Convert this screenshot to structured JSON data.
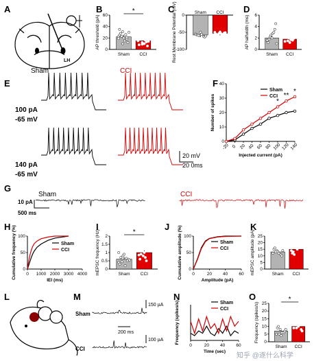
{
  "panels": {
    "A": "A",
    "B": "B",
    "C": "C",
    "D": "D",
    "E": "E",
    "F": "F",
    "G": "G",
    "H": "H",
    "I": "I",
    "J": "J",
    "K": "K",
    "L": "L",
    "M": "M",
    "N": "N",
    "O": "O"
  },
  "colors": {
    "sham": "#000000",
    "cci": "#d40000",
    "sham_bar": "#b3b3b3",
    "cci_bar": "#e00000"
  },
  "brain": {
    "lh_label": "LH"
  },
  "traces_E": {
    "sham_title": "Sham",
    "cci_title": "CCI",
    "row1_current": "100 pA",
    "row1_vm": "-65 mV",
    "row2_current": "140 pA",
    "row2_vm": "-65 mV",
    "scale_v": "20 mV",
    "scale_t": "20 0ms"
  },
  "traces_G": {
    "sham_title": "Sham",
    "cci_title": "CCI",
    "scale_i": "10 pA",
    "scale_t": "500 ms"
  },
  "traces_M": {
    "sham_label": "Sham",
    "cci_label": "CCI",
    "scale_1": "150 µA",
    "scale_2": "100 µA",
    "scale_t": "200 ms"
  },
  "watermark": "知乎 @逐什么科学",
  "chart_data": [
    {
      "panel": "B",
      "type": "bar",
      "categories": [
        "Sham",
        "CCI"
      ],
      "values": [
        22,
        15
      ],
      "ylabel": "AP threshold (pA)",
      "ylim": [
        0,
        60
      ],
      "yticks": [
        0,
        20,
        40,
        60
      ],
      "significance": "*",
      "points": [
        [
          22,
          31,
          18,
          25,
          20,
          12,
          28,
          15,
          30,
          23,
          26,
          19,
          10,
          21,
          35
        ],
        [
          15,
          12,
          24,
          8,
          18,
          6,
          30,
          10,
          14,
          20,
          16,
          22,
          9,
          13,
          27
        ]
      ]
    },
    {
      "panel": "C",
      "type": "bar",
      "categories": [
        "Sham",
        "CCI"
      ],
      "values": [
        -58,
        -53
      ],
      "ylabel": "Rest Membrane Potential (mV)",
      "ylim": [
        -100,
        0
      ],
      "yticks": [
        0,
        -50,
        -100
      ],
      "points": [
        [
          -55,
          -60,
          -62,
          -57,
          -50,
          -64,
          -58,
          -56,
          -61,
          -59
        ],
        [
          -50,
          -53,
          -56,
          -55,
          -49,
          -52,
          -58,
          -54,
          -51,
          -57
        ]
      ]
    },
    {
      "panel": "D",
      "type": "bar",
      "categories": [
        "Sham",
        "CCI"
      ],
      "values": [
        2.0,
        1.8
      ],
      "ylabel": "AP halfwidth (ms)",
      "ylim": [
        0,
        6
      ],
      "yticks": [
        0,
        2,
        4,
        6
      ],
      "points": [
        [
          1.5,
          2.5,
          3.5,
          1.2,
          2.0,
          4.5,
          1.8,
          2.8,
          1.0,
          2.2,
          3.0,
          1.6
        ],
        [
          1.4,
          2.0,
          1.6,
          2.4,
          1.2,
          1.9,
          2.6,
          1.7,
          2.2,
          1.5,
          1.8,
          3.0
        ]
      ]
    },
    {
      "panel": "F",
      "type": "line",
      "x": [
        -20,
        0,
        20,
        40,
        60,
        80,
        100,
        120,
        140
      ],
      "series": [
        {
          "name": "Sham",
          "values": [
            0,
            1,
            5,
            9,
            12,
            16,
            18,
            20,
            21
          ]
        },
        {
          "name": "CCI",
          "values": [
            0,
            2,
            8,
            12,
            16,
            20,
            24,
            28,
            31
          ]
        }
      ],
      "xlabel": "Injected current (pA)",
      "ylabel": "Number of spikes",
      "xlim": [
        -20,
        140
      ],
      "ylim": [
        0,
        40
      ],
      "xticks": [
        -20,
        0,
        20,
        40,
        60,
        80,
        100,
        120,
        140
      ],
      "yticks": [
        0,
        10,
        20,
        30,
        40
      ],
      "significance": [
        "*",
        "**",
        "*"
      ]
    },
    {
      "panel": "H",
      "type": "line",
      "x": [
        0,
        100,
        200,
        300,
        400,
        500,
        700,
        1000,
        1500,
        2000,
        3000
      ],
      "series": [
        {
          "name": "Sham",
          "values": [
            0,
            12,
            25,
            37,
            47,
            55,
            66,
            76,
            87,
            94,
            100
          ]
        },
        {
          "name": "CCI",
          "values": [
            0,
            25,
            45,
            60,
            70,
            77,
            85,
            92,
            97,
            100,
            100
          ]
        }
      ],
      "xlabel": "IEI (ms)",
      "ylabel": "Cumulative frequency (%)",
      "xlim": [
        0,
        4000
      ],
      "ylim": [
        0,
        100
      ],
      "xticks": [
        0,
        1000,
        2000,
        3000,
        4000
      ],
      "yticks": [
        0,
        50,
        100
      ]
    },
    {
      "panel": "I",
      "type": "bar",
      "categories": [
        "Sham",
        "CCI"
      ],
      "values": [
        0.6,
        1.0
      ],
      "ylabel": "mEPSC frequency (Hz)",
      "ylim": [
        0,
        2.0
      ],
      "yticks": [
        0,
        0.5,
        1.0,
        1.5,
        2.0
      ],
      "significance": "*",
      "points": [
        [
          0.4,
          0.8,
          0.5,
          0.3,
          0.9,
          0.6,
          0.7,
          0.2,
          0.55,
          0.45,
          0.65,
          1.0
        ],
        [
          1.2,
          0.8,
          1.5,
          0.6,
          1.0,
          1.3,
          0.9,
          0.7,
          1.6,
          1.1,
          0.5,
          0.85
        ]
      ]
    },
    {
      "panel": "J",
      "type": "line",
      "x": [
        0,
        5,
        10,
        15,
        20,
        30,
        40,
        60
      ],
      "series": [
        {
          "name": "Sham",
          "values": [
            0,
            30,
            65,
            85,
            93,
            98,
            100,
            100
          ]
        },
        {
          "name": "CCI",
          "values": [
            0,
            28,
            62,
            83,
            92,
            97,
            99,
            100
          ]
        }
      ],
      "xlabel": "Amplitude (pA)",
      "ylabel": "Cumulative amplitude (%)",
      "xlim": [
        0,
        60
      ],
      "ylim": [
        0,
        100
      ],
      "xticks": [
        0,
        20,
        40,
        60
      ],
      "yticks": [
        0,
        50,
        100
      ]
    },
    {
      "panel": "K",
      "type": "bar",
      "categories": [
        "Sham",
        "CCI"
      ],
      "values": [
        13,
        15
      ],
      "ylabel": "mEPSC amplitude (pA)",
      "ylim": [
        0,
        25
      ],
      "yticks": [
        0,
        5,
        10,
        15,
        20,
        25
      ],
      "points": [
        [
          12,
          14,
          11,
          15,
          13,
          10,
          16,
          12,
          14,
          13
        ],
        [
          14,
          20,
          18,
          12,
          16,
          22,
          13,
          15,
          17,
          11
        ]
      ]
    },
    {
      "panel": "N",
      "type": "line",
      "x": [
        0,
        5,
        10,
        15,
        20,
        25,
        30,
        35,
        40,
        45,
        50,
        55,
        60
      ],
      "series": [
        {
          "name": "Sham",
          "values": [
            3,
            2,
            4,
            3,
            6,
            3,
            2,
            5,
            3,
            6,
            2,
            4,
            3
          ]
        },
        {
          "name": "CCI",
          "values": [
            8,
            3,
            9,
            4,
            10,
            5,
            7,
            3,
            9,
            4,
            10,
            6,
            8
          ]
        }
      ],
      "xlabel": "Time (sec)",
      "ylabel": "Frequency (spikes/s)",
      "xlim": [
        0,
        60
      ],
      "ylim": [
        0,
        15
      ],
      "xticks": [
        0,
        20,
        40,
        60
      ]
    },
    {
      "panel": "O",
      "type": "bar",
      "categories": [
        "Sham",
        "CCI"
      ],
      "values": [
        7,
        10
      ],
      "ylabel": "Frequency (spikes/s)",
      "ylim": [
        0,
        25
      ],
      "yticks": [
        0,
        5,
        10,
        15,
        20,
        25
      ],
      "significance": "*",
      "points": [
        [
          5,
          8,
          6,
          9,
          4,
          7,
          10,
          6,
          8,
          5
        ],
        [
          9,
          12,
          8,
          14,
          10,
          7,
          13,
          11,
          16,
          9
        ]
      ]
    }
  ]
}
